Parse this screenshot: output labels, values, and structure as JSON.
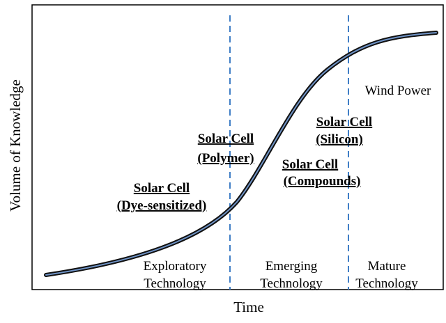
{
  "diagram": {
    "axis": {
      "y_label": "Volume of Knowledge",
      "x_label": "Time"
    },
    "stages": [
      {
        "line1": "Exploratory",
        "line2": "Technology"
      },
      {
        "line1": "Emerging",
        "line2": "Technology"
      },
      {
        "line1": "Mature",
        "line2": "Technology"
      }
    ],
    "technologies": [
      {
        "line1": "Solar Cell",
        "line2": "(Dye-sensitized)"
      },
      {
        "line1": "Solar Cell",
        "line2": "(Polymer)"
      },
      {
        "line1": "Solar Cell",
        "line2": "(Compounds)"
      },
      {
        "line1": "Solar Cell",
        "line2": "(Silicon)"
      }
    ],
    "mature_example": "Wind Power",
    "colors": {
      "divider": "#3f7ec6",
      "curve": "#6f93c6",
      "curve_outline": "#111111"
    }
  }
}
